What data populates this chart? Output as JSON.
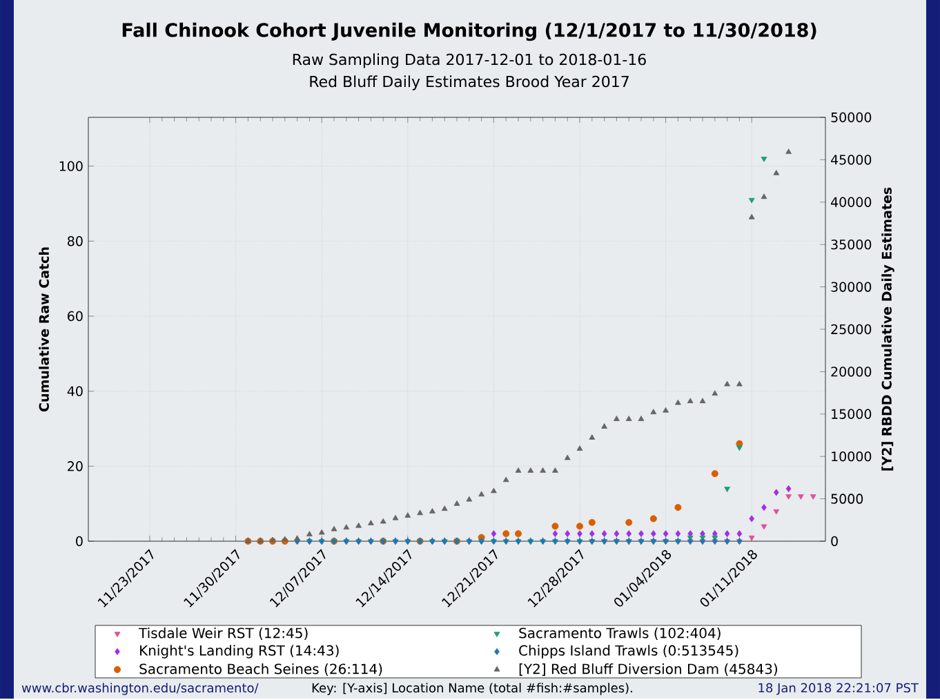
{
  "chart_data": {
    "type": "scatter",
    "title": "Fall Chinook Cohort Juvenile Monitoring (12/1/2017 to 11/30/2018)",
    "subtitle": [
      "Raw Sampling Data 2017-12-01 to 2018-01-16",
      "Red Bluff Daily Estimates Brood Year 2017"
    ],
    "ylabel": "Cumulative Raw Catch",
    "y2label": "[Y2] RBDD Cumulative Daily Estimates",
    "x": [
      "2017-12-01",
      "2017-12-02",
      "2017-12-03",
      "2017-12-04",
      "2017-12-05",
      "2017-12-06",
      "2017-12-07",
      "2017-12-08",
      "2017-12-09",
      "2017-12-10",
      "2017-12-11",
      "2017-12-12",
      "2017-12-13",
      "2017-12-14",
      "2017-12-15",
      "2017-12-16",
      "2017-12-17",
      "2017-12-18",
      "2017-12-19",
      "2017-12-20",
      "2017-12-21",
      "2017-12-22",
      "2017-12-23",
      "2017-12-24",
      "2017-12-25",
      "2017-12-26",
      "2017-12-27",
      "2017-12-28",
      "2017-12-29",
      "2017-12-30",
      "2017-12-31",
      "2018-01-01",
      "2018-01-02",
      "2018-01-03",
      "2018-01-04",
      "2018-01-05",
      "2018-01-06",
      "2018-01-07",
      "2018-01-08",
      "2018-01-09",
      "2018-01-10",
      "2018-01-11",
      "2018-01-12",
      "2018-01-13",
      "2018-01-14",
      "2018-01-15",
      "2018-01-16"
    ],
    "series": [
      {
        "name": "Tisdale Weir RST (12:45)",
        "color": "#e0509a",
        "marker": "triangle",
        "values": [
          null,
          null,
          null,
          null,
          null,
          null,
          null,
          null,
          null,
          null,
          null,
          null,
          null,
          null,
          null,
          null,
          null,
          null,
          null,
          null,
          null,
          null,
          null,
          null,
          null,
          null,
          null,
          null,
          0,
          0,
          0,
          0,
          0,
          0,
          0,
          0,
          0,
          0,
          0,
          0,
          0,
          1,
          4,
          8,
          12,
          12,
          12
        ]
      },
      {
        "name": "Knight's Landing RST (14:43)",
        "color": "#a030e0",
        "marker": "diamond",
        "values": [
          null,
          null,
          null,
          null,
          0,
          0,
          0,
          null,
          0,
          0,
          0,
          null,
          0,
          0,
          null,
          0,
          0,
          null,
          0,
          null,
          2,
          null,
          null,
          null,
          null,
          2,
          2,
          2,
          2,
          2,
          2,
          2,
          2,
          2,
          2,
          2,
          2,
          2,
          2,
          2,
          2,
          6,
          9,
          13,
          14,
          null,
          null
        ]
      },
      {
        "name": "Sacramento Beach Seines (26:114)",
        "color": "#d95f02",
        "marker": "circle",
        "values": [
          0,
          0,
          0,
          0,
          null,
          null,
          null,
          0,
          null,
          null,
          null,
          0,
          null,
          null,
          0,
          null,
          null,
          0,
          null,
          1,
          null,
          2,
          2,
          null,
          null,
          4,
          null,
          4,
          5,
          null,
          null,
          5,
          null,
          6,
          null,
          9,
          null,
          null,
          18,
          null,
          26,
          null,
          null,
          null,
          null,
          null,
          null
        ]
      },
      {
        "name": "Sacramento Trawls (102:404)",
        "color": "#1b9e77",
        "marker": "triangle",
        "values": [
          null,
          null,
          null,
          null,
          0,
          0,
          0,
          0,
          0,
          0,
          0,
          0,
          0,
          0,
          0,
          0,
          0,
          0,
          0,
          0,
          0,
          0,
          0,
          0,
          0,
          0,
          0,
          0,
          0,
          0,
          0,
          0,
          0,
          0,
          0,
          0,
          1,
          1,
          1,
          14,
          25,
          91,
          102,
          null,
          null,
          null,
          null
        ]
      },
      {
        "name": "Chipps Island Trawls (0:513545)",
        "color": "#1f78b4",
        "marker": "diamond",
        "values": [
          null,
          null,
          null,
          null,
          0,
          0,
          0,
          0,
          0,
          0,
          0,
          0,
          0,
          0,
          0,
          0,
          0,
          0,
          0,
          0,
          0,
          0,
          0,
          0,
          0,
          0,
          0,
          0,
          0,
          0,
          0,
          0,
          0,
          0,
          0,
          0,
          0,
          0,
          0,
          0,
          0,
          null,
          null,
          null,
          null,
          null,
          null
        ]
      },
      {
        "name": "[Y2] Red Bluff Diversion Dam (45843)",
        "color": "#666666",
        "marker": "triangle",
        "axis": "y2",
        "values": [
          0,
          0,
          100,
          200,
          300,
          800,
          1000,
          1400,
          1600,
          1800,
          2100,
          2300,
          2700,
          3000,
          3300,
          3500,
          3800,
          4400,
          4900,
          5500,
          5900,
          7200,
          8300,
          8300,
          8300,
          8300,
          9800,
          10900,
          12200,
          13500,
          14400,
          14400,
          14400,
          15200,
          15400,
          16300,
          16500,
          16500,
          17400,
          18500,
          18500,
          38200,
          40600,
          43400,
          45900,
          null,
          null
        ]
      }
    ],
    "xlim": [
      "2017-11-18",
      "2018-01-17"
    ],
    "xticks": [
      {
        "value": "2017-11-23",
        "label": "11/23/2017"
      },
      {
        "value": "2017-11-30",
        "label": "11/30/2017"
      },
      {
        "value": "2017-12-07",
        "label": "12/07/2017"
      },
      {
        "value": "2017-12-14",
        "label": "12/14/2017"
      },
      {
        "value": "2017-12-21",
        "label": "12/21/2017"
      },
      {
        "value": "2017-12-28",
        "label": "12/28/2017"
      },
      {
        "value": "2018-01-04",
        "label": "01/04/2018"
      },
      {
        "value": "2018-01-11",
        "label": "01/11/2018"
      }
    ],
    "ylim": [
      0,
      113
    ],
    "yticks": [
      0,
      20,
      40,
      60,
      80,
      100
    ],
    "y2lim": [
      0,
      50000
    ],
    "y2ticks": [
      0,
      5000,
      10000,
      15000,
      20000,
      25000,
      30000,
      35000,
      40000,
      45000,
      50000
    ],
    "grid": true,
    "legend": "bottom",
    "annotations": [
      "www.cbr.washington.edu/sacramento/",
      "Key: [Y-axis] Location Name (total #fish:#samples).",
      "18 Jan 2018 22:21:07 PST"
    ]
  }
}
